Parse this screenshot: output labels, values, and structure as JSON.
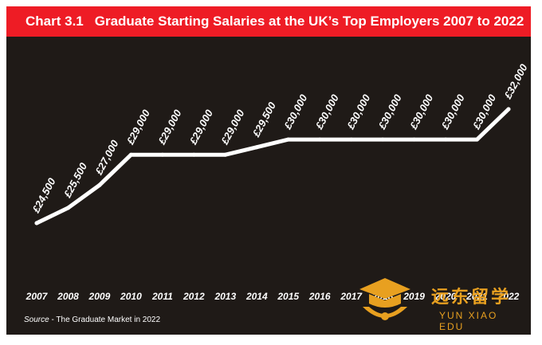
{
  "header": {
    "chart_label": "Chart 3.1",
    "title": "Graduate Starting Salaries at the UK’s Top Employers 2007 to 2022"
  },
  "footer": {
    "source_prefix": "Source",
    "source_text": " - The Graduate Market in 2022"
  },
  "watermark": {
    "chinese": "远东留学",
    "english": "YUN XIAO EDU"
  },
  "colors": {
    "background": "#1f1a17",
    "title_bar": "#ee1c25",
    "line": "#ffffff",
    "text": "#ffffff",
    "watermark": "#e8a020"
  },
  "chart_data": {
    "type": "line",
    "title": "Graduate Starting Salaries at the UK’s Top Employers 2007 to 2022",
    "x": [
      "2007",
      "2008",
      "2009",
      "2010",
      "2011",
      "2012",
      "2013",
      "2014",
      "2015",
      "2016",
      "2017",
      "2018",
      "2019",
      "2020",
      "2021",
      "2022"
    ],
    "values": [
      24500,
      25500,
      27000,
      29000,
      29000,
      29000,
      29000,
      29500,
      30000,
      30000,
      30000,
      30000,
      30000,
      30000,
      30000,
      32000
    ],
    "data_labels": [
      "£24,500",
      "£25,500",
      "£27,000",
      "£29,000",
      "£29,000",
      "£29,000",
      "£29,000",
      "£29,500",
      "£30,000",
      "£30,000",
      "£30,000",
      "£30,000",
      "£30,000",
      "£30,000",
      "£30,000",
      "£32,000"
    ],
    "grid": false,
    "legend": false
  }
}
